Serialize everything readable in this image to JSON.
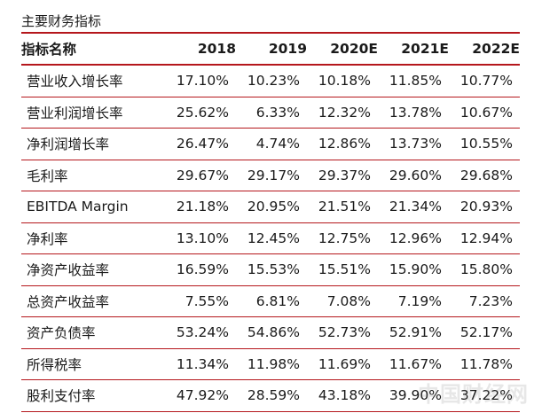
{
  "caption": "主要财务指标",
  "header": {
    "name": "指标名称",
    "years": [
      "2018",
      "2019",
      "2020E",
      "2021E",
      "2022E"
    ]
  },
  "rows": [
    {
      "name": "营业收入增长率",
      "values": [
        "17.10%",
        "10.23%",
        "10.18%",
        "11.85%",
        "10.77%"
      ]
    },
    {
      "name": "营业利润增长率",
      "values": [
        "25.62%",
        "6.33%",
        "12.32%",
        "13.78%",
        "10.67%"
      ]
    },
    {
      "name": "净利润增长率",
      "values": [
        "26.47%",
        "4.74%",
        "12.86%",
        "13.73%",
        "10.55%"
      ]
    },
    {
      "name": "毛利率",
      "values": [
        "29.67%",
        "29.17%",
        "29.37%",
        "29.60%",
        "29.68%"
      ]
    },
    {
      "name": "EBITDA Margin",
      "values": [
        "21.18%",
        "20.95%",
        "21.51%",
        "21.34%",
        "20.93%"
      ]
    },
    {
      "name": "净利率",
      "values": [
        "13.10%",
        "12.45%",
        "12.75%",
        "12.96%",
        "12.94%"
      ]
    },
    {
      "name": "净资产收益率",
      "values": [
        "16.59%",
        "15.53%",
        "15.51%",
        "15.90%",
        "15.80%"
      ]
    },
    {
      "name": "总资产收益率",
      "values": [
        "7.55%",
        "6.81%",
        "7.08%",
        "7.19%",
        "7.23%"
      ]
    },
    {
      "name": "资产负债率",
      "values": [
        "53.24%",
        "54.86%",
        "52.73%",
        "52.91%",
        "52.17%"
      ]
    },
    {
      "name": "所得税率",
      "values": [
        "11.34%",
        "11.98%",
        "11.69%",
        "11.67%",
        "11.78%"
      ]
    },
    {
      "name": "股利支付率",
      "values": [
        "47.92%",
        "28.59%",
        "43.18%",
        "39.90%",
        "37.22%"
      ]
    }
  ],
  "watermark": "中国财经网",
  "colors": {
    "rule": "#b5171c"
  }
}
